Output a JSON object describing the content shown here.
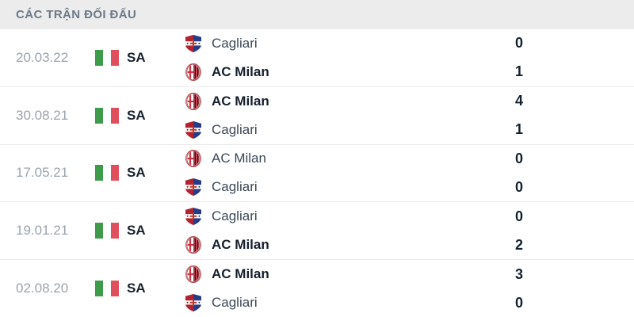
{
  "header": {
    "title": "CÁC TRẬN ĐỐI ĐẤU"
  },
  "colors": {
    "header_bg": "#ececec",
    "header_text": "#6b7a88",
    "date_text": "#9aa3ad",
    "dark_text": "#15202e",
    "team_text": "#3c4858",
    "flag_green": "#3d9b4b",
    "flag_red": "#e0505c",
    "separator": "#e9eaeb"
  },
  "matches": [
    {
      "date": "20.03.22",
      "league": "SA",
      "teams": [
        {
          "name": "Cagliari",
          "logo": "cagliari-logo",
          "score": "0",
          "winner": false
        },
        {
          "name": "AC Milan",
          "logo": "acmilan-logo",
          "score": "1",
          "winner": true
        }
      ]
    },
    {
      "date": "30.08.21",
      "league": "SA",
      "teams": [
        {
          "name": "AC Milan",
          "logo": "acmilan-logo",
          "score": "4",
          "winner": true
        },
        {
          "name": "Cagliari",
          "logo": "cagliari-logo",
          "score": "1",
          "winner": false
        }
      ]
    },
    {
      "date": "17.05.21",
      "league": "SA",
      "teams": [
        {
          "name": "AC Milan",
          "logo": "acmilan-logo",
          "score": "0",
          "winner": false
        },
        {
          "name": "Cagliari",
          "logo": "cagliari-logo",
          "score": "0",
          "winner": false
        }
      ]
    },
    {
      "date": "19.01.21",
      "league": "SA",
      "teams": [
        {
          "name": "Cagliari",
          "logo": "cagliari-logo",
          "score": "0",
          "winner": false
        },
        {
          "name": "AC Milan",
          "logo": "acmilan-logo",
          "score": "2",
          "winner": true
        }
      ]
    },
    {
      "date": "02.08.20",
      "league": "SA",
      "teams": [
        {
          "name": "AC Milan",
          "logo": "acmilan-logo",
          "score": "3",
          "winner": true
        },
        {
          "name": "Cagliari",
          "logo": "cagliari-logo",
          "score": "0",
          "winner": false
        }
      ]
    }
  ]
}
